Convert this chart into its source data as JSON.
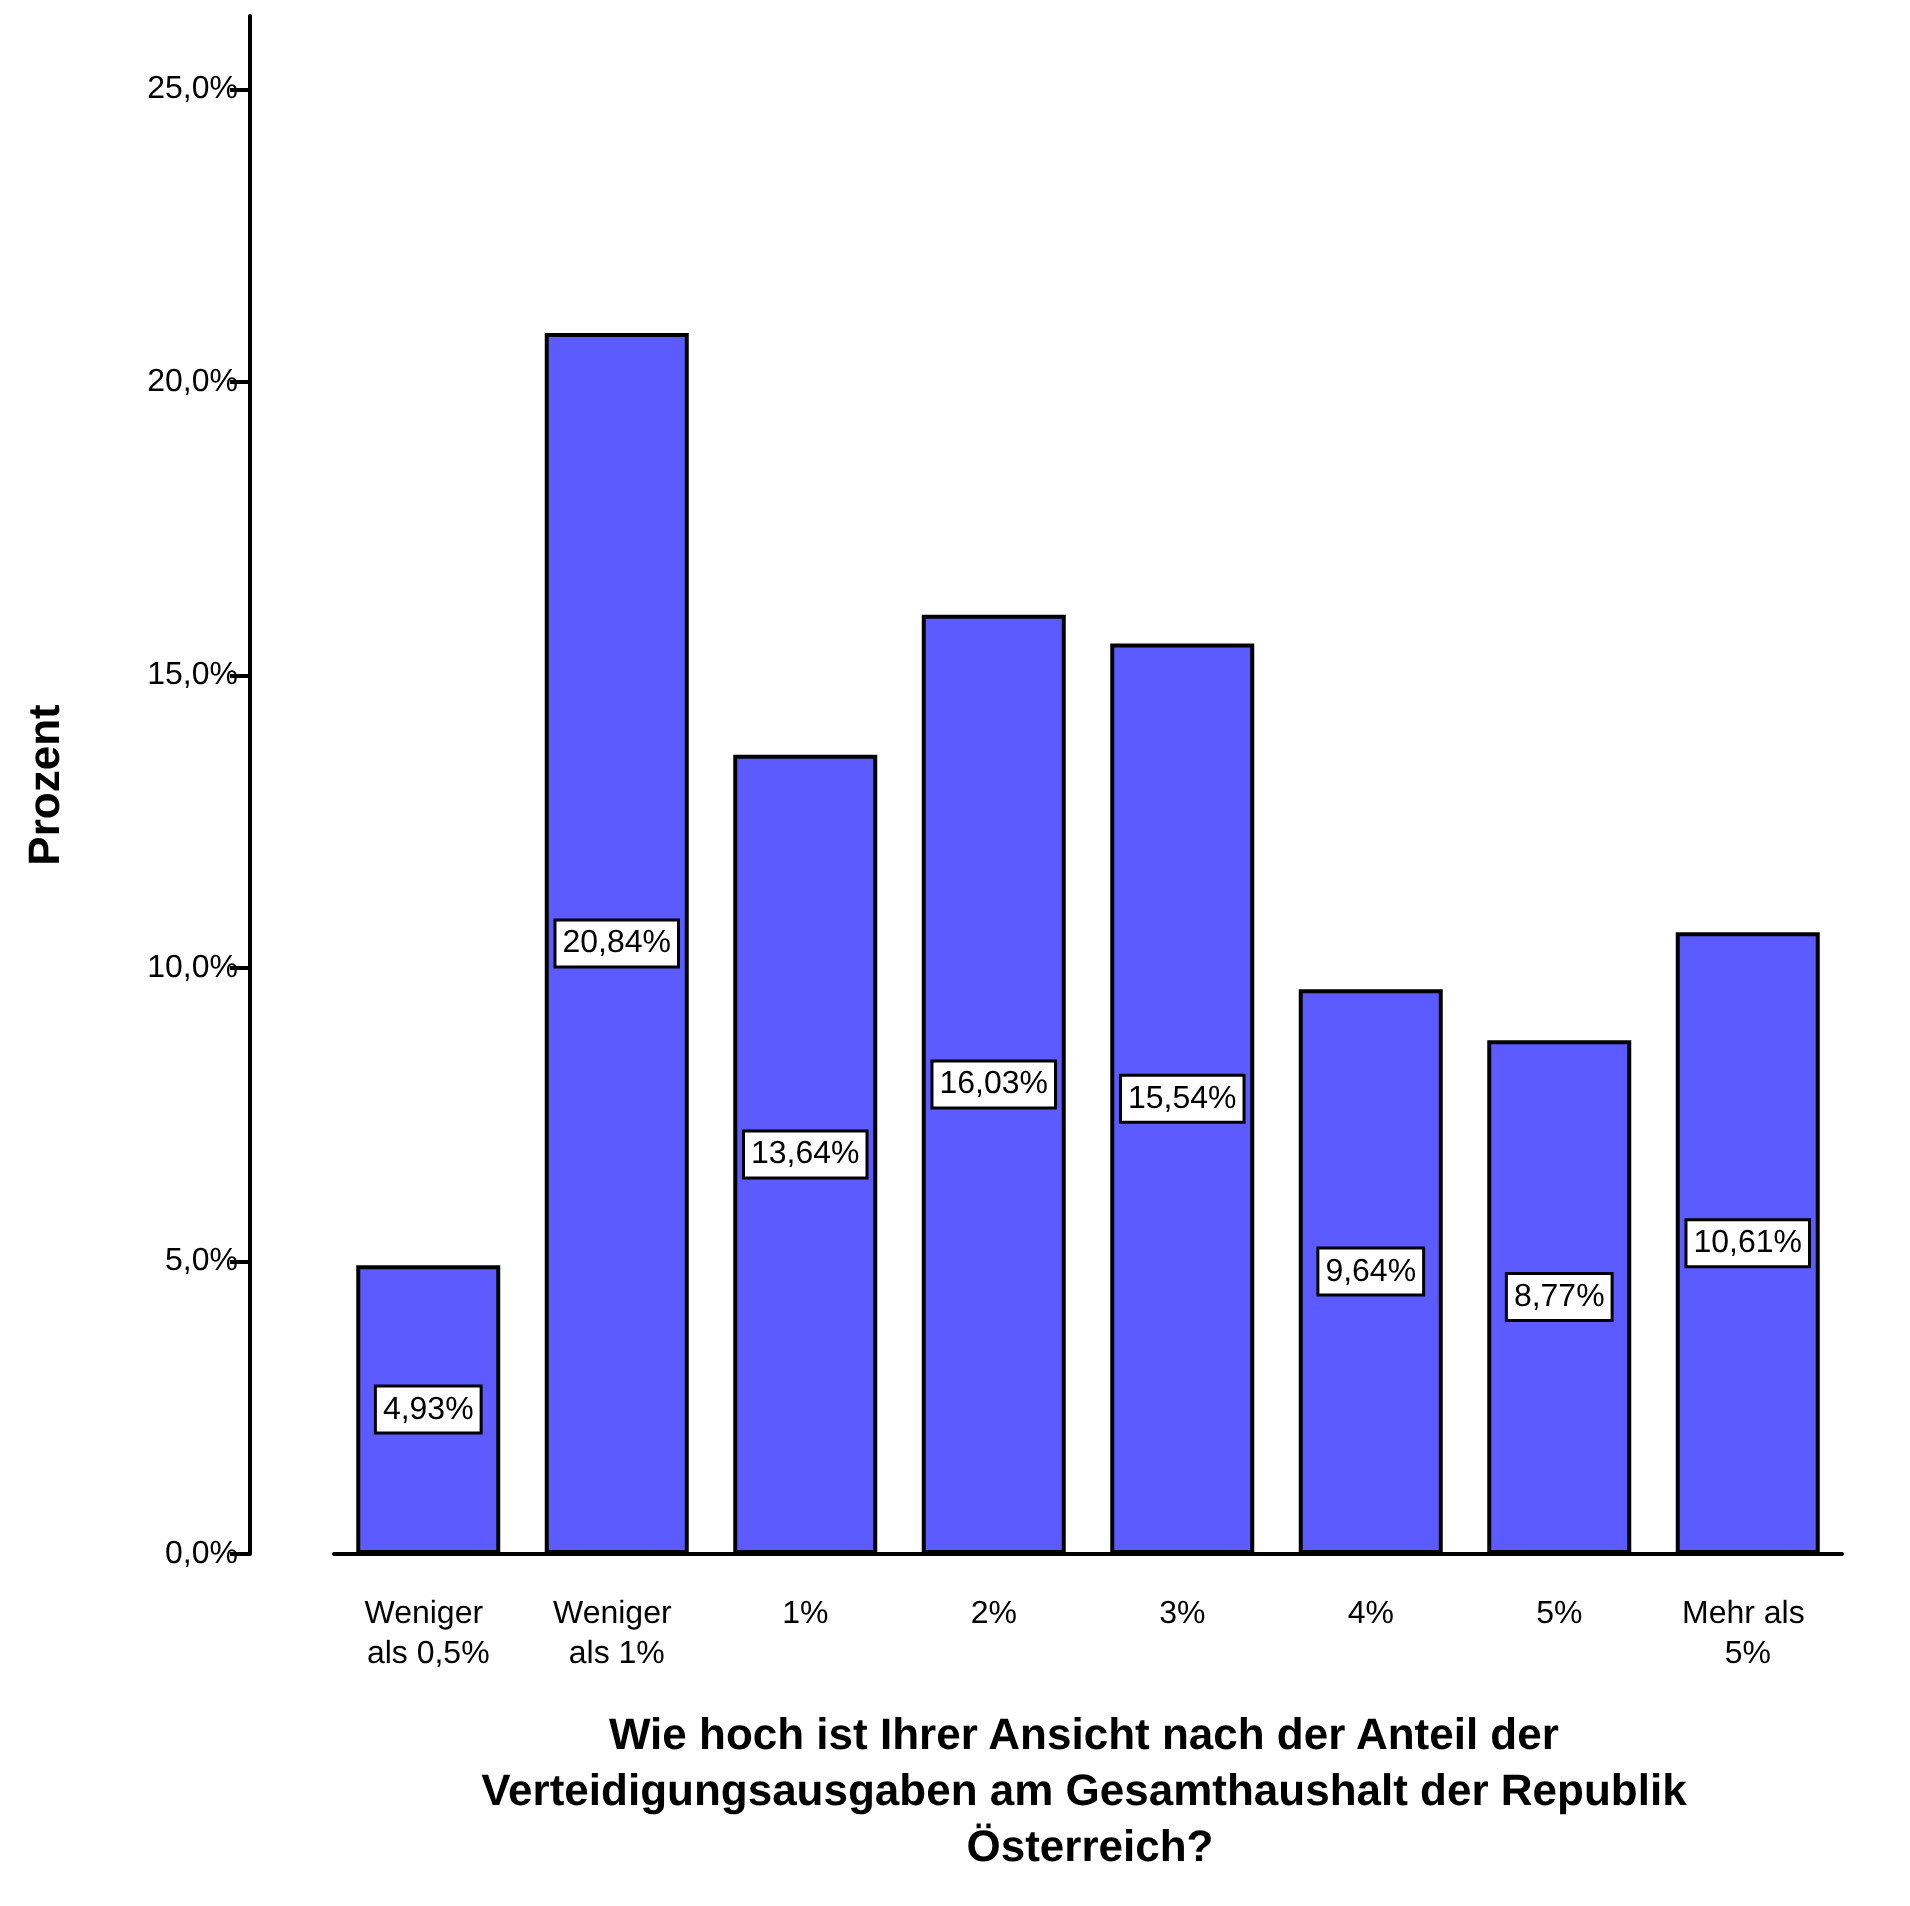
{
  "chart_data": {
    "type": "bar",
    "xlabel": "Wie hoch ist Ihrer Ansicht nach der Anteil der Verteidigungsausgaben am Gesamthaushalt der Republik Österreich?",
    "ylabel": "Prozent",
    "categories": [
      "Weniger als 0,5%",
      "Weniger als 1%",
      "1%",
      "2%",
      "3%",
      "4%",
      "5%",
      "Mehr als 5%"
    ],
    "values": [
      4.93,
      20.84,
      13.64,
      16.03,
      15.54,
      9.64,
      8.77,
      10.61
    ],
    "value_labels": [
      "4,93%",
      "20,84%",
      "13,64%",
      "16,03%",
      "15,54%",
      "9,64%",
      "8,77%",
      "10,61%"
    ],
    "color": "#5b5bff",
    "ylim": [
      0,
      26.25
    ],
    "yticks": [
      {
        "value": 0,
        "label": "0,0%"
      },
      {
        "value": 5,
        "label": "5,0%"
      },
      {
        "value": 10,
        "label": "10,0%"
      },
      {
        "value": 15,
        "label": "15,0%"
      },
      {
        "value": 20,
        "label": "20,0%"
      },
      {
        "value": 25,
        "label": "25,0%"
      }
    ],
    "grid": false
  }
}
